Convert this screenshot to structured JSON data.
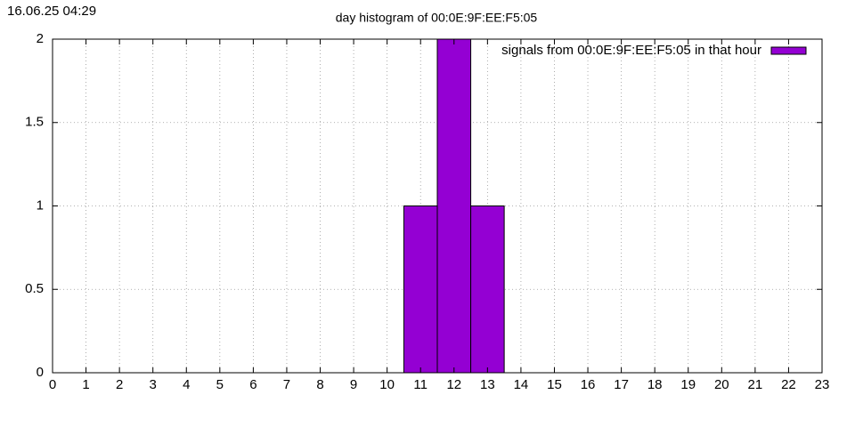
{
  "chart_data": {
    "type": "bar",
    "timestamp": "16.06.25 04:29",
    "title": "day histogram of 00:0E:9F:EE:F5:05",
    "x": [
      0,
      1,
      2,
      3,
      4,
      5,
      6,
      7,
      8,
      9,
      10,
      11,
      12,
      13,
      14,
      15,
      16,
      17,
      18,
      19,
      20,
      21,
      22,
      23
    ],
    "series": [
      {
        "name": "signals from 00:0E:9F:EE:F5:05 in that hour",
        "color": "#9400d3",
        "values": [
          0,
          0,
          0,
          0,
          0,
          0,
          0,
          0,
          0,
          0,
          0,
          1,
          2,
          1,
          0,
          0,
          0,
          0,
          0,
          0,
          0,
          0,
          0,
          0
        ]
      }
    ],
    "xlim": [
      0,
      23
    ],
    "xticks": [
      0,
      1,
      2,
      3,
      4,
      5,
      6,
      7,
      8,
      9,
      10,
      11,
      12,
      13,
      14,
      15,
      16,
      17,
      18,
      19,
      20,
      21,
      22,
      23
    ],
    "ylim": [
      0,
      2
    ],
    "yticks": [
      0,
      0.5,
      1,
      1.5,
      2
    ],
    "grid": true,
    "legend": "top-right"
  }
}
